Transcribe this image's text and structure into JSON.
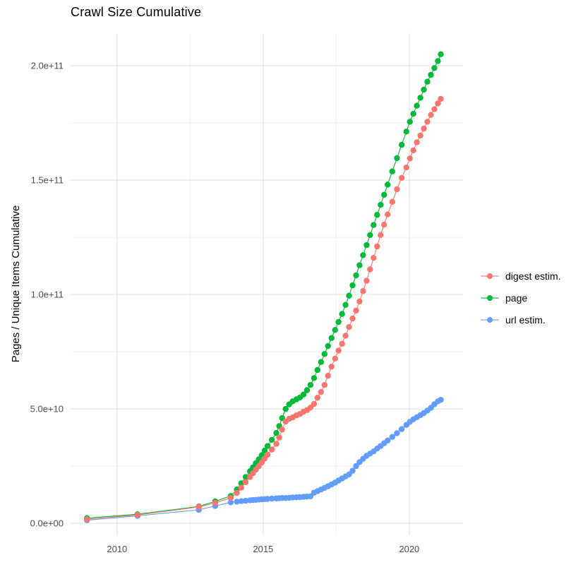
{
  "page": {
    "title": "Crawl Size Cumulative"
  },
  "chart_data": {
    "type": "line",
    "markers": true,
    "title": "Crawl Size Cumulative",
    "xlabel": "",
    "ylabel": "Pages / Unique Items Cumulative",
    "values_unit": "billions (1e9 items); y axis shown in scientific notation",
    "x_domain": [
      2008.41,
      2021.84
    ],
    "y_domain_billions": [
      -5.2,
      214.2
    ],
    "grid": "on",
    "legend_position": "right",
    "x_ticks": {
      "major": [
        2010,
        2015,
        2020
      ],
      "labels": [
        "2010",
        "2015",
        "2020"
      ],
      "minor": [
        2012.5,
        2017.5
      ]
    },
    "y_ticks": {
      "major_billions": [
        0,
        50,
        100,
        150,
        200
      ],
      "labels": [
        "0.0e+00",
        "5.0e+10",
        "1.0e+11",
        "1.5e+11",
        "2.0e+11"
      ],
      "minor_billions": [
        25,
        75,
        125,
        175
      ]
    },
    "series": [
      {
        "name": "digest estim.",
        "color": "#F8766D",
        "z": 3,
        "points": [
          [
            2008.97,
            1.8
          ],
          [
            2010.7,
            3.7
          ],
          [
            2012.8,
            7.2
          ],
          [
            2013.36,
            9.0
          ],
          [
            2013.89,
            11.2
          ],
          [
            2014.1,
            13.3
          ],
          [
            2014.25,
            15.6
          ],
          [
            2014.4,
            18.0
          ],
          [
            2014.55,
            20.3
          ],
          [
            2014.65,
            21.9
          ],
          [
            2014.75,
            23.5
          ],
          [
            2014.85,
            25.0
          ],
          [
            2014.95,
            26.6
          ],
          [
            2015.05,
            28.3
          ],
          [
            2015.15,
            30.0
          ],
          [
            2015.3,
            32.3
          ],
          [
            2015.45,
            34.8
          ],
          [
            2015.55,
            37.5
          ],
          [
            2015.65,
            41.0
          ],
          [
            2015.77,
            44.5
          ],
          [
            2015.89,
            45.7
          ],
          [
            2016.01,
            46.3
          ],
          [
            2016.14,
            47.2
          ],
          [
            2016.26,
            47.8
          ],
          [
            2016.38,
            48.8
          ],
          [
            2016.5,
            49.5
          ],
          [
            2016.62,
            50.6
          ],
          [
            2016.74,
            52.2
          ],
          [
            2016.86,
            54.9
          ],
          [
            2016.98,
            57.4
          ],
          [
            2017.1,
            60.5
          ],
          [
            2017.22,
            64.5
          ],
          [
            2017.34,
            68.5
          ],
          [
            2017.46,
            72.0
          ],
          [
            2017.58,
            75.5
          ],
          [
            2017.7,
            78.5
          ],
          [
            2017.82,
            82.0
          ],
          [
            2017.94,
            85.8
          ],
          [
            2018.06,
            89.5
          ],
          [
            2018.18,
            93.0
          ],
          [
            2018.3,
            97.0
          ],
          [
            2018.42,
            101.5
          ],
          [
            2018.54,
            106.0
          ],
          [
            2018.66,
            111.0
          ],
          [
            2018.78,
            116.0
          ],
          [
            2018.9,
            121.0
          ],
          [
            2019.02,
            126.0
          ],
          [
            2019.14,
            130.5
          ],
          [
            2019.26,
            135.0
          ],
          [
            2019.42,
            140.5
          ],
          [
            2019.58,
            146.0
          ],
          [
            2019.74,
            151.0
          ],
          [
            2019.9,
            155.5
          ],
          [
            2020.02,
            159.5
          ],
          [
            2020.14,
            163.0
          ],
          [
            2020.26,
            166.5
          ],
          [
            2020.38,
            169.5
          ],
          [
            2020.5,
            172.5
          ],
          [
            2020.62,
            175.5
          ],
          [
            2020.74,
            178.5
          ],
          [
            2020.86,
            181.0
          ],
          [
            2020.98,
            183.5
          ],
          [
            2021.08,
            185.5
          ]
        ]
      },
      {
        "name": "page",
        "color": "#00BA38",
        "z": 1,
        "points": [
          [
            2008.97,
            2.3
          ],
          [
            2010.7,
            4.0
          ],
          [
            2012.8,
            7.4
          ],
          [
            2013.36,
            9.6
          ],
          [
            2013.89,
            12.0
          ],
          [
            2014.1,
            14.8
          ],
          [
            2014.25,
            17.5
          ],
          [
            2014.4,
            20.3
          ],
          [
            2014.55,
            22.8
          ],
          [
            2014.65,
            24.5
          ],
          [
            2014.75,
            26.3
          ],
          [
            2014.85,
            28.0
          ],
          [
            2014.95,
            29.8
          ],
          [
            2015.05,
            31.8
          ],
          [
            2015.15,
            33.8
          ],
          [
            2015.3,
            36.5
          ],
          [
            2015.45,
            39.5
          ],
          [
            2015.55,
            42.5
          ],
          [
            2015.65,
            46.0
          ],
          [
            2015.77,
            50.0
          ],
          [
            2015.89,
            52.0
          ],
          [
            2016.01,
            53.3
          ],
          [
            2016.14,
            54.2
          ],
          [
            2016.26,
            55.0
          ],
          [
            2016.38,
            56.3
          ],
          [
            2016.5,
            58.2
          ],
          [
            2016.62,
            60.5
          ],
          [
            2016.74,
            63.5
          ],
          [
            2016.86,
            67.0
          ],
          [
            2016.98,
            70.5
          ],
          [
            2017.1,
            74.0
          ],
          [
            2017.22,
            77.5
          ],
          [
            2017.34,
            81.0
          ],
          [
            2017.46,
            84.5
          ],
          [
            2017.58,
            88.0
          ],
          [
            2017.7,
            91.5
          ],
          [
            2017.82,
            95.5
          ],
          [
            2017.94,
            99.5
          ],
          [
            2018.06,
            104.0
          ],
          [
            2018.18,
            108.4
          ],
          [
            2018.3,
            112.8
          ],
          [
            2018.42,
            117.2
          ],
          [
            2018.54,
            121.6
          ],
          [
            2018.66,
            126.0
          ],
          [
            2018.78,
            130.4
          ],
          [
            2018.9,
            134.8
          ],
          [
            2019.02,
            139.2
          ],
          [
            2019.14,
            143.6
          ],
          [
            2019.26,
            148.0
          ],
          [
            2019.42,
            153.8
          ],
          [
            2019.58,
            159.6
          ],
          [
            2019.74,
            165.4
          ],
          [
            2019.9,
            171.2
          ],
          [
            2020.02,
            175.5
          ],
          [
            2020.14,
            179.0
          ],
          [
            2020.26,
            182.5
          ],
          [
            2020.38,
            186.0
          ],
          [
            2020.5,
            189.5
          ],
          [
            2020.62,
            193.0
          ],
          [
            2020.74,
            196.0
          ],
          [
            2020.86,
            199.0
          ],
          [
            2020.98,
            202.0
          ],
          [
            2021.08,
            205.0
          ]
        ]
      },
      {
        "name": "url estim.",
        "color": "#619CFF",
        "z": 2,
        "points": [
          [
            2008.97,
            1.4
          ],
          [
            2010.7,
            3.3
          ],
          [
            2012.8,
            5.9
          ],
          [
            2013.36,
            7.6
          ],
          [
            2013.89,
            9.2
          ],
          [
            2014.1,
            9.5
          ],
          [
            2014.25,
            9.7
          ],
          [
            2014.4,
            9.9
          ],
          [
            2014.55,
            10.1
          ],
          [
            2014.65,
            10.2
          ],
          [
            2014.75,
            10.3
          ],
          [
            2014.85,
            10.4
          ],
          [
            2014.95,
            10.5
          ],
          [
            2015.05,
            10.6
          ],
          [
            2015.15,
            10.7
          ],
          [
            2015.3,
            10.8
          ],
          [
            2015.45,
            10.9
          ],
          [
            2015.55,
            11.0
          ],
          [
            2015.65,
            11.1
          ],
          [
            2015.77,
            11.1
          ],
          [
            2015.89,
            11.2
          ],
          [
            2016.01,
            11.3
          ],
          [
            2016.14,
            11.4
          ],
          [
            2016.26,
            11.5
          ],
          [
            2016.38,
            11.6
          ],
          [
            2016.5,
            11.7
          ],
          [
            2016.62,
            11.8
          ],
          [
            2016.74,
            13.4
          ],
          [
            2016.86,
            14.1
          ],
          [
            2016.98,
            14.8
          ],
          [
            2017.1,
            15.5
          ],
          [
            2017.22,
            16.2
          ],
          [
            2017.34,
            17.0
          ],
          [
            2017.46,
            17.8
          ],
          [
            2017.58,
            18.7
          ],
          [
            2017.7,
            19.6
          ],
          [
            2017.82,
            20.5
          ],
          [
            2017.94,
            21.4
          ],
          [
            2018.06,
            23.0
          ],
          [
            2018.18,
            25.0
          ],
          [
            2018.3,
            26.8
          ],
          [
            2018.42,
            28.2
          ],
          [
            2018.54,
            29.5
          ],
          [
            2018.66,
            30.5
          ],
          [
            2018.78,
            31.5
          ],
          [
            2018.9,
            32.7
          ],
          [
            2019.02,
            33.8
          ],
          [
            2019.14,
            35.0
          ],
          [
            2019.26,
            36.2
          ],
          [
            2019.42,
            37.8
          ],
          [
            2019.58,
            39.4
          ],
          [
            2019.74,
            41.2
          ],
          [
            2019.9,
            43.0
          ],
          [
            2020.02,
            44.4
          ],
          [
            2020.14,
            45.5
          ],
          [
            2020.26,
            46.4
          ],
          [
            2020.38,
            47.3
          ],
          [
            2020.5,
            48.2
          ],
          [
            2020.62,
            49.3
          ],
          [
            2020.74,
            50.5
          ],
          [
            2020.86,
            52.0
          ],
          [
            2020.98,
            53.3
          ],
          [
            2021.08,
            54.0
          ]
        ]
      }
    ],
    "style": {
      "grid_major_color": "#E5E5E5",
      "grid_minor_color": "#F0F0F0",
      "background": "#FFFFFF",
      "axis_text_color": "#4d4d4d",
      "point_radius": 4.2,
      "line_width": 1.1
    }
  }
}
